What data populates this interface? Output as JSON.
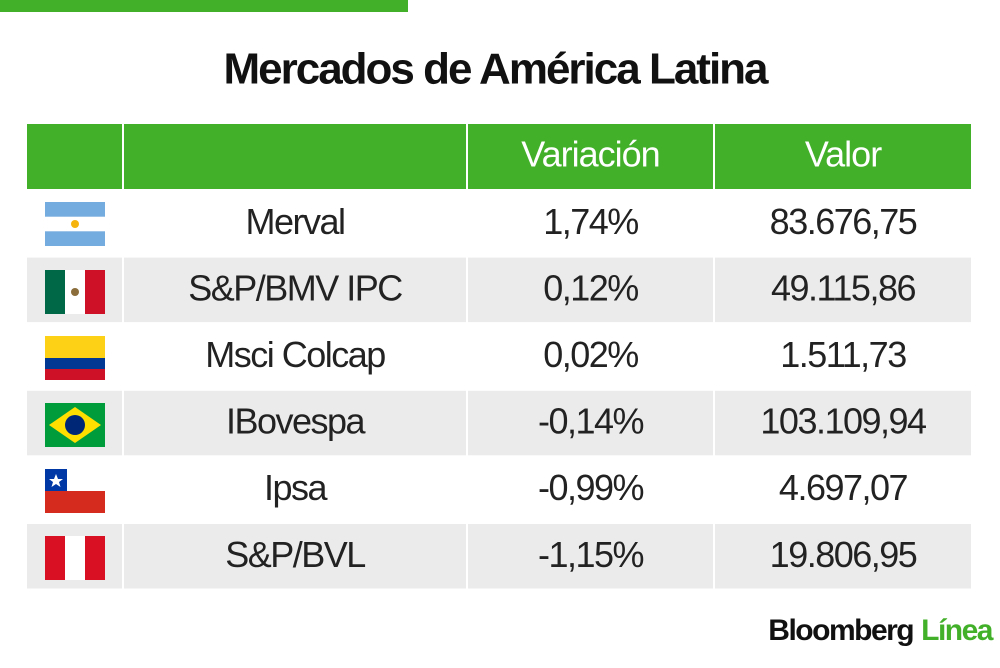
{
  "title": "Mercados de América Latina",
  "table": {
    "header": [
      "Variación",
      "Valor"
    ],
    "rows": [
      [
        "Merval",
        "1,74%",
        "83.676,75"
      ],
      [
        "S&P/BMV IPC",
        "0,12%",
        "49.115,86"
      ],
      [
        "Msci Colcap",
        "0,02%",
        "1.511,73"
      ],
      [
        "IBovespa",
        "-0,14%",
        "103.109,94"
      ],
      [
        "Ipsa",
        "-0,99%",
        "4.697,07"
      ],
      [
        "S&P/BVL",
        "-1,15%",
        "19.806,95"
      ]
    ]
  },
  "footer": {
    "brand": "Bloomberg",
    "product": "Línea"
  }
}
